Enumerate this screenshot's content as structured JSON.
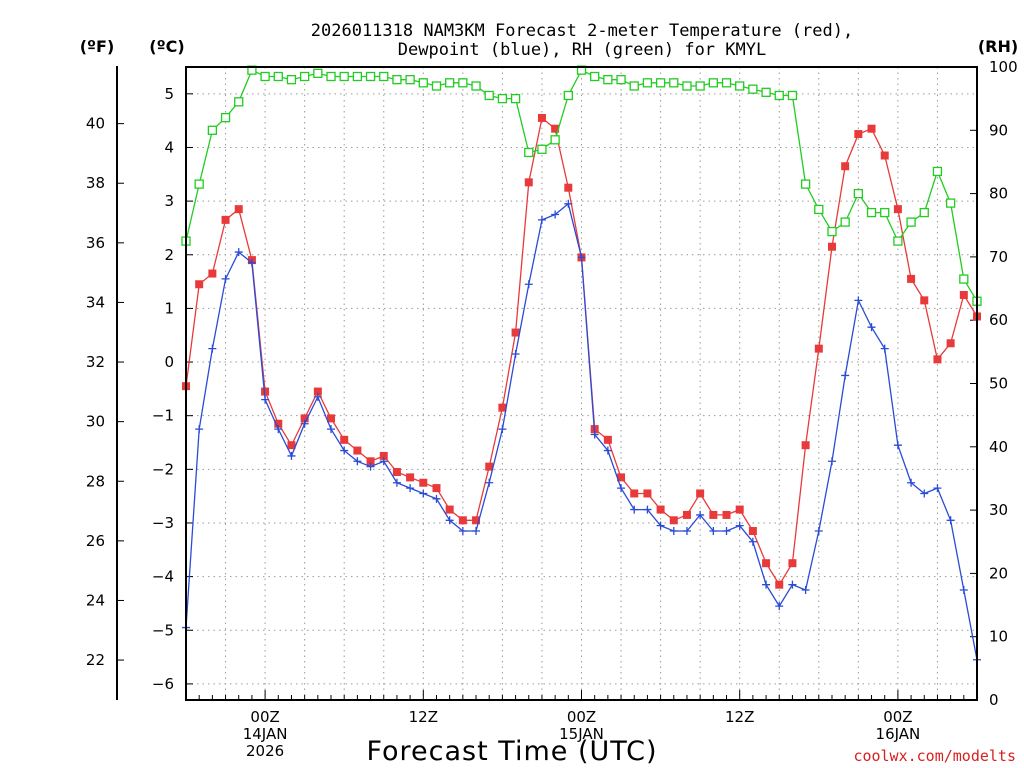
{
  "chart_data": {
    "type": "line",
    "title": "2026011318 NAM3KM Forecast 2-meter Temperature (red),",
    "subtitle": "Dewpoint (blue), RH (green) for KMYL",
    "xlabel": "Forecast Time (UTC)",
    "units": {
      "fahrenheit": "(ºF)",
      "celsius": "(ºC)",
      "rh": "(RH)"
    },
    "celsius_ticks": [
      "−6",
      "−5",
      "−4",
      "−3",
      "−2",
      "−1",
      "0",
      "1",
      "2",
      "3",
      "4",
      "5"
    ],
    "fahrenheit_ticks": [
      "22",
      "24",
      "26",
      "28",
      "30",
      "32",
      "34",
      "36",
      "38",
      "40"
    ],
    "rh_ticks": [
      "0",
      "10",
      "20",
      "30",
      "40",
      "50",
      "60",
      "70",
      "80",
      "90",
      "100"
    ],
    "ylim_celsius": [
      -6.3,
      5.5
    ],
    "ylim_rh": [
      0,
      100
    ],
    "xlim_hours": [
      18,
      78
    ],
    "x_ticks": [
      {
        "hour": 24,
        "line1": "00Z",
        "line2": "14JAN",
        "line3": "2026"
      },
      {
        "hour": 36,
        "line1": "12Z",
        "line2": "",
        "line3": ""
      },
      {
        "hour": 48,
        "line1": "00Z",
        "line2": "15JAN",
        "line3": ""
      },
      {
        "hour": 60,
        "line1": "12Z",
        "line2": "",
        "line3": ""
      },
      {
        "hour": 72,
        "line1": "00Z",
        "line2": "16JAN",
        "line3": ""
      }
    ],
    "x_hours": [
      18,
      19,
      20,
      21,
      22,
      23,
      24,
      25,
      26,
      27,
      28,
      29,
      30,
      31,
      32,
      33,
      34,
      35,
      36,
      37,
      38,
      39,
      40,
      41,
      42,
      43,
      44,
      45,
      46,
      47,
      48,
      49,
      50,
      51,
      52,
      53,
      54,
      55,
      56,
      57,
      58,
      59,
      60,
      61,
      62,
      63,
      64,
      65,
      66,
      67,
      68,
      69,
      70,
      71,
      72,
      73,
      74,
      75,
      76,
      77,
      78
    ],
    "series": [
      {
        "name": "2-meter Temperature",
        "color": "#e83a3a",
        "marker": "filled-square",
        "axis": "celsius",
        "values": [
          -0.45,
          1.45,
          1.65,
          2.65,
          2.85,
          1.9,
          -0.55,
          -1.15,
          -1.55,
          -1.05,
          -0.55,
          -1.05,
          -1.45,
          -1.65,
          -1.85,
          -1.75,
          -2.05,
          -2.15,
          -2.25,
          -2.35,
          -2.75,
          -2.95,
          -2.95,
          -1.95,
          -0.85,
          0.55,
          3.35,
          4.55,
          4.35,
          3.25,
          1.95,
          -1.25,
          -1.45,
          -2.15,
          -2.45,
          -2.45,
          -2.75,
          -2.95,
          -2.85,
          -2.45,
          -2.85,
          -2.85,
          -2.75,
          -3.15,
          -3.75,
          -4.15,
          -3.75,
          -1.55,
          0.25,
          2.15,
          3.65,
          4.25,
          4.35,
          3.85,
          2.85,
          1.55,
          1.15,
          0.05,
          0.35,
          1.25,
          0.85
        ]
      },
      {
        "name": "Dewpoint",
        "color": "#2a4bd7",
        "marker": "plus",
        "axis": "celsius",
        "values": [
          -4.95,
          -1.25,
          0.25,
          1.55,
          2.05,
          1.85,
          -0.7,
          -1.25,
          -1.75,
          -1.15,
          -0.65,
          -1.25,
          -1.65,
          -1.85,
          -1.95,
          -1.85,
          -2.25,
          -2.35,
          -2.45,
          -2.55,
          -2.95,
          -3.15,
          -3.15,
          -2.25,
          -1.25,
          0.15,
          1.45,
          2.65,
          2.75,
          2.95,
          1.95,
          -1.35,
          -1.65,
          -2.35,
          -2.75,
          -2.75,
          -3.05,
          -3.15,
          -3.15,
          -2.85,
          -3.15,
          -3.15,
          -3.05,
          -3.35,
          -4.15,
          -4.55,
          -4.15,
          -4.25,
          -3.15,
          -1.85,
          -0.25,
          1.15,
          0.65,
          0.25,
          -1.55,
          -2.25,
          -2.45,
          -2.35,
          -2.95,
          -4.25,
          -5.55
        ]
      },
      {
        "name": "RH",
        "color": "#22cc22",
        "marker": "open-square",
        "axis": "rh",
        "values": [
          72.5,
          81.5,
          90,
          92,
          94.5,
          99.5,
          98.5,
          98.5,
          98,
          98.5,
          99,
          98.5,
          98.5,
          98.5,
          98.5,
          98.5,
          98,
          98,
          97.5,
          97,
          97.5,
          97.5,
          97,
          95.5,
          95,
          95,
          86.5,
          87,
          88.5,
          95.5,
          99.5,
          98.5,
          98,
          98,
          97,
          97.5,
          97.5,
          97.5,
          97,
          97,
          97.5,
          97.5,
          97,
          96.5,
          96,
          95.5,
          95.5,
          81.5,
          77.5,
          74,
          75.5,
          80,
          77,
          77,
          72.5,
          75.5,
          77,
          83.5,
          78.5,
          66.5,
          63
        ]
      }
    ],
    "credit": "coolwx.com/modelts"
  }
}
